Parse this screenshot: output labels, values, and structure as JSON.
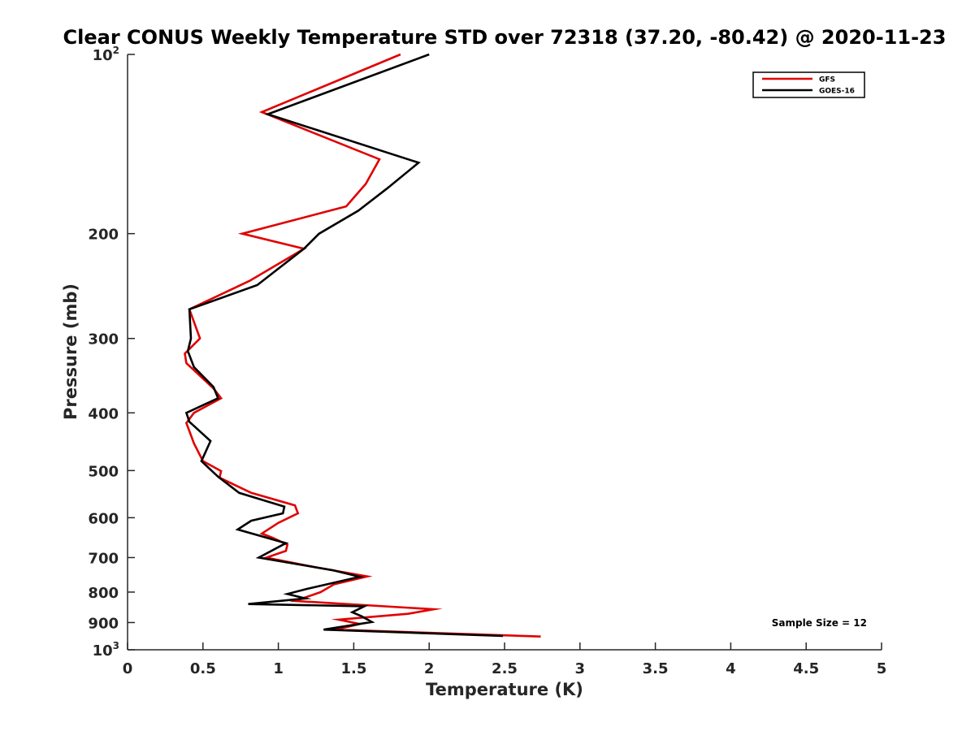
{
  "chart_data": {
    "type": "line",
    "title": "Clear CONUS Weekly Temperature STD over 72318 (37.20, -80.42) @ 2020-11-23",
    "xlabel": "Temperature (K)",
    "ylabel": "Pressure (mb)",
    "xlim": [
      0,
      5
    ],
    "ylim": [
      100,
      1000
    ],
    "y_scale": "log",
    "y_reversed": true,
    "grid": false,
    "legend_position": "top-right",
    "x_ticks": [
      {
        "value": 0,
        "label": "0"
      },
      {
        "value": 0.5,
        "label": "0.5"
      },
      {
        "value": 1,
        "label": "1"
      },
      {
        "value": 1.5,
        "label": "1.5"
      },
      {
        "value": 2,
        "label": "2"
      },
      {
        "value": 2.5,
        "label": "2.5"
      },
      {
        "value": 3,
        "label": "3"
      },
      {
        "value": 3.5,
        "label": "3.5"
      },
      {
        "value": 4,
        "label": "4"
      },
      {
        "value": 4.5,
        "label": "4.5"
      },
      {
        "value": 5,
        "label": "5"
      }
    ],
    "y_ticks": [
      {
        "value": 100,
        "label": "10",
        "sup": "2"
      },
      {
        "value": 200,
        "label": "200",
        "sup": ""
      },
      {
        "value": 300,
        "label": "300",
        "sup": ""
      },
      {
        "value": 400,
        "label": "400",
        "sup": ""
      },
      {
        "value": 500,
        "label": "500",
        "sup": ""
      },
      {
        "value": 600,
        "label": "600",
        "sup": ""
      },
      {
        "value": 700,
        "label": "700",
        "sup": ""
      },
      {
        "value": 800,
        "label": "800",
        "sup": ""
      },
      {
        "value": 900,
        "label": "900",
        "sup": ""
      },
      {
        "value": 1000,
        "label": "10",
        "sup": "3"
      }
    ],
    "annotation": "Sample Size = 12",
    "series": [
      {
        "name": "GFS",
        "color": "#e00000",
        "points": [
          [
            1.81,
            100
          ],
          [
            0.89,
            125
          ],
          [
            1.67,
            150
          ],
          [
            1.58,
            165
          ],
          [
            1.45,
            180
          ],
          [
            0.76,
            200
          ],
          [
            1.17,
            212
          ],
          [
            0.81,
            240
          ],
          [
            0.41,
            268
          ],
          [
            0.48,
            300
          ],
          [
            0.38,
            318
          ],
          [
            0.39,
            330
          ],
          [
            0.57,
            364
          ],
          [
            0.62,
            378
          ],
          [
            0.44,
            400
          ],
          [
            0.39,
            416
          ],
          [
            0.44,
            450
          ],
          [
            0.5,
            482
          ],
          [
            0.62,
            501
          ],
          [
            0.61,
            514
          ],
          [
            0.82,
            545
          ],
          [
            1.11,
            572
          ],
          [
            1.13,
            590
          ],
          [
            1.0,
            612
          ],
          [
            0.89,
            638
          ],
          [
            0.96,
            648
          ],
          [
            1.06,
            666
          ],
          [
            1.05,
            682
          ],
          [
            0.92,
            700
          ],
          [
            1.26,
            728
          ],
          [
            1.59,
            753
          ],
          [
            1.37,
            776
          ],
          [
            1.28,
            800
          ],
          [
            1.11,
            828
          ],
          [
            2.03,
            855
          ],
          [
            1.86,
            870
          ],
          [
            1.4,
            890
          ],
          [
            1.54,
            905
          ],
          [
            1.38,
            925
          ],
          [
            2.74,
            950
          ]
        ]
      },
      {
        "name": "GOES-16",
        "color": "#000000",
        "points": [
          [
            2.0,
            100
          ],
          [
            0.93,
            126
          ],
          [
            1.93,
            152
          ],
          [
            1.72,
            168
          ],
          [
            1.53,
            183
          ],
          [
            1.27,
            200
          ],
          [
            1.17,
            212
          ],
          [
            0.86,
            244
          ],
          [
            0.41,
            268
          ],
          [
            0.42,
            300
          ],
          [
            0.4,
            315
          ],
          [
            0.44,
            335
          ],
          [
            0.57,
            362
          ],
          [
            0.6,
            378
          ],
          [
            0.39,
            400
          ],
          [
            0.41,
            414
          ],
          [
            0.55,
            446
          ],
          [
            0.49,
            482
          ],
          [
            0.6,
            512
          ],
          [
            0.74,
            545
          ],
          [
            1.04,
            575
          ],
          [
            1.03,
            590
          ],
          [
            0.82,
            607
          ],
          [
            0.73,
            628
          ],
          [
            1.05,
            662
          ],
          [
            0.87,
            700
          ],
          [
            1.36,
            735
          ],
          [
            1.54,
            754
          ],
          [
            1.19,
            790
          ],
          [
            1.06,
            806
          ],
          [
            1.18,
            820
          ],
          [
            0.8,
            838
          ],
          [
            1.57,
            845
          ],
          [
            1.49,
            865
          ],
          [
            1.55,
            878
          ],
          [
            1.62,
            898
          ],
          [
            1.3,
            925
          ],
          [
            2.49,
            948
          ]
        ]
      }
    ]
  }
}
